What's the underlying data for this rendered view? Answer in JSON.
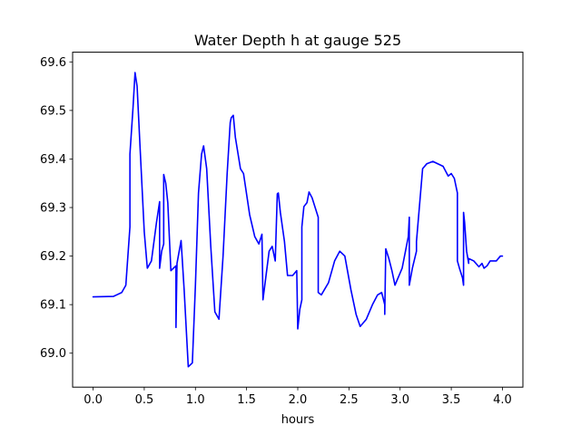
{
  "chart_data": {
    "type": "line",
    "title": "Water Depth h at gauge 525",
    "xlabel": "hours",
    "ylabel": "",
    "xlim": [
      -0.2,
      4.2
    ],
    "ylim": [
      68.93,
      69.62
    ],
    "xticks": [
      0.0,
      0.5,
      1.0,
      1.5,
      2.0,
      2.5,
      3.0,
      3.5,
      4.0
    ],
    "xtick_labels": [
      "0.0",
      "0.5",
      "1.0",
      "1.5",
      "2.0",
      "2.5",
      "3.0",
      "3.5",
      "4.0"
    ],
    "yticks": [
      69.0,
      69.1,
      69.2,
      69.3,
      69.4,
      69.5,
      69.6
    ],
    "ytick_labels": [
      "69.0",
      "69.1",
      "69.2",
      "69.3",
      "69.4",
      "69.5",
      "69.6"
    ],
    "grid": false,
    "series": [
      {
        "color": "#0000ff",
        "x": [
          0.0,
          0.2,
          0.28,
          0.32,
          0.36,
          0.36,
          0.39,
          0.41,
          0.43,
          0.46,
          0.5,
          0.53,
          0.57,
          0.62,
          0.65,
          0.65,
          0.67,
          0.69,
          0.69,
          0.71,
          0.73,
          0.76,
          0.81,
          0.81,
          0.82,
          0.86,
          0.89,
          0.93,
          0.97,
          1.0,
          1.03,
          1.06,
          1.08,
          1.11,
          1.15,
          1.19,
          1.23,
          1.27,
          1.31,
          1.34,
          1.35,
          1.37,
          1.39,
          1.44,
          1.47,
          1.53,
          1.58,
          1.62,
          1.65,
          1.66,
          1.72,
          1.75,
          1.78,
          1.8,
          1.81,
          1.83,
          1.87,
          1.9,
          1.95,
          1.99,
          2.0,
          2.02,
          2.04,
          2.04,
          2.06,
          2.09,
          2.11,
          2.14,
          2.17,
          2.2,
          2.2,
          2.23,
          2.3,
          2.36,
          2.41,
          2.46,
          2.52,
          2.57,
          2.61,
          2.67,
          2.73,
          2.78,
          2.82,
          2.85,
          2.85,
          2.86,
          2.89,
          2.92,
          2.95,
          3.02,
          3.08,
          3.09,
          3.09,
          3.12,
          3.16,
          3.16,
          3.22,
          3.26,
          3.32,
          3.42,
          3.47,
          3.5,
          3.53,
          3.56,
          3.56,
          3.58,
          3.61,
          3.62,
          3.62,
          3.63,
          3.65,
          3.67,
          3.67,
          3.72,
          3.77,
          3.8,
          3.82,
          3.85,
          3.88,
          3.94,
          3.98,
          4.0
        ],
        "y": [
          69.116,
          69.117,
          69.125,
          69.14,
          69.26,
          69.41,
          69.505,
          69.578,
          69.55,
          69.42,
          69.25,
          69.175,
          69.19,
          69.27,
          69.312,
          69.175,
          69.21,
          69.225,
          69.368,
          69.35,
          69.31,
          69.17,
          69.18,
          69.053,
          69.185,
          69.232,
          69.13,
          68.972,
          68.98,
          69.14,
          69.33,
          69.41,
          69.427,
          69.38,
          69.22,
          69.085,
          69.07,
          69.2,
          69.37,
          69.475,
          69.485,
          69.49,
          69.445,
          69.38,
          69.37,
          69.285,
          69.24,
          69.225,
          69.245,
          69.11,
          69.21,
          69.22,
          69.19,
          69.328,
          69.33,
          69.29,
          69.23,
          69.16,
          69.16,
          69.17,
          69.05,
          69.09,
          69.11,
          69.26,
          69.302,
          69.31,
          69.332,
          69.32,
          69.3,
          69.28,
          69.125,
          69.12,
          69.145,
          69.19,
          69.21,
          69.2,
          69.13,
          69.08,
          69.055,
          69.07,
          69.1,
          69.12,
          69.125,
          69.1,
          69.08,
          69.215,
          69.195,
          69.17,
          69.14,
          69.175,
          69.24,
          69.28,
          69.14,
          69.175,
          69.21,
          69.23,
          69.38,
          69.39,
          69.395,
          69.385,
          69.365,
          69.37,
          69.36,
          69.33,
          69.19,
          69.175,
          69.155,
          69.14,
          69.29,
          69.27,
          69.21,
          69.185,
          69.195,
          69.19,
          69.178,
          69.185,
          69.175,
          69.18,
          69.19,
          69.19,
          69.2,
          69.2
        ]
      }
    ]
  }
}
